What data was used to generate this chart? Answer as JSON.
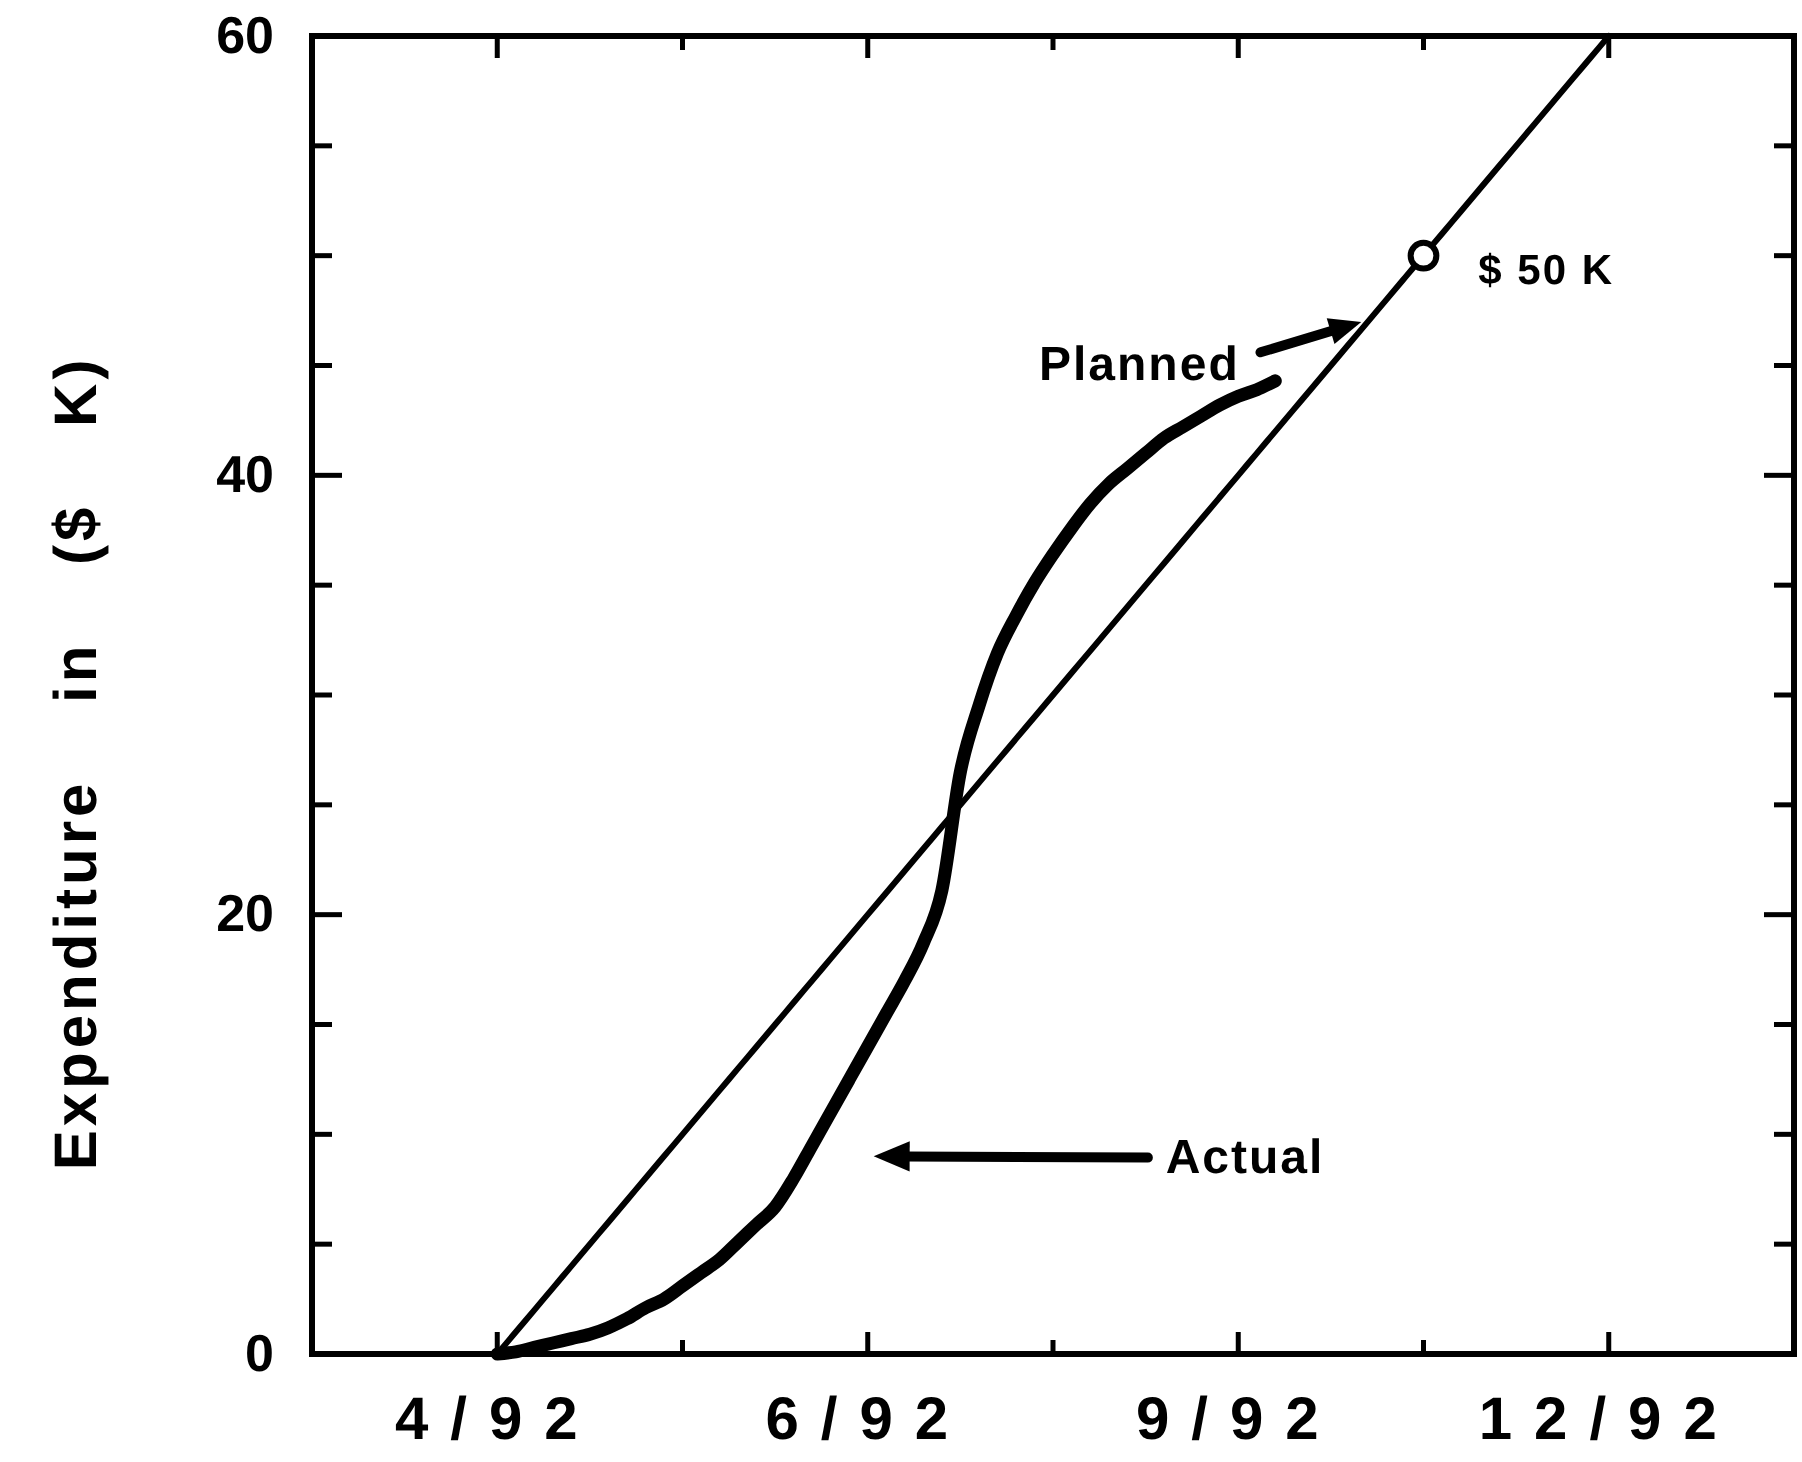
{
  "chart_data": {
    "type": "line",
    "ylabel": "Expenditure in ($ K)",
    "categories": [
      "4/92",
      null,
      null,
      null,
      null,
      null,
      null,
      null,
      null,
      null,
      null,
      null,
      null,
      null,
      null,
      null,
      null,
      null,
      null,
      null,
      "6/92",
      null,
      null,
      null,
      null,
      null,
      null,
      null,
      null,
      null,
      null,
      null,
      null,
      null,
      null,
      null,
      null,
      null,
      null,
      null,
      "9/92",
      null,
      null,
      null,
      null,
      null,
      null,
      null,
      null,
      null,
      null,
      null,
      null,
      null,
      null,
      null,
      null,
      null,
      null,
      null,
      "12/92"
    ],
    "ylim": [
      0,
      60
    ],
    "yticks": [
      0,
      20,
      40,
      60
    ],
    "series": [
      {
        "color": "#000000",
        "values": [
          0,
          1,
          2,
          3,
          4,
          5,
          6,
          7,
          8,
          9,
          10,
          11,
          12,
          13,
          14,
          15,
          16,
          17,
          18,
          19,
          20,
          21,
          22,
          23,
          24,
          25,
          26,
          27,
          28,
          29,
          30,
          31,
          32,
          33,
          34,
          35,
          36,
          37,
          38,
          39,
          40,
          41,
          42,
          43,
          44,
          45,
          46,
          47,
          48,
          49,
          50,
          51,
          52,
          53,
          54,
          55,
          56,
          57,
          58,
          59,
          60
        ]
      },
      {
        "color": "#000000",
        "values": [
          0,
          0.1,
          0.3,
          0.5,
          0.7,
          0.9,
          1.2,
          1.6,
          2.1,
          2.5,
          3.1,
          3.7,
          4.3,
          5.1,
          5.9,
          6.7,
          8.0,
          9.5,
          11.0,
          12.5,
          14.0,
          15.5,
          17.0,
          18.7,
          21.1,
          26.5,
          29.5,
          31.9,
          33.6,
          35.1,
          36.4,
          37.6,
          38.7,
          39.6,
          40.3,
          41.0,
          41.7,
          42.2,
          42.7,
          43.2,
          43.6,
          43.9,
          44.3,
          null,
          null,
          null,
          null,
          null,
          null,
          null,
          null,
          null,
          null,
          null,
          null,
          null,
          null,
          null,
          null,
          null,
          null
        ]
      },
      {
        "type": "scatter",
        "color": "#000000",
        "marker": "circle",
        "values": [
          null,
          null,
          null,
          null,
          null,
          null,
          null,
          null,
          null,
          null,
          null,
          null,
          null,
          null,
          null,
          null,
          null,
          null,
          null,
          null,
          null,
          null,
          null,
          null,
          null,
          null,
          null,
          null,
          null,
          null,
          null,
          null,
          null,
          null,
          null,
          null,
          null,
          null,
          null,
          null,
          null,
          null,
          null,
          null,
          null,
          null,
          null,
          null,
          null,
          null,
          50,
          null,
          null,
          null,
          null,
          null,
          null,
          null,
          null,
          null,
          null
        ]
      }
    ],
    "annotations": [
      "Planned",
      "Actual",
      "$ 50 K"
    ]
  }
}
